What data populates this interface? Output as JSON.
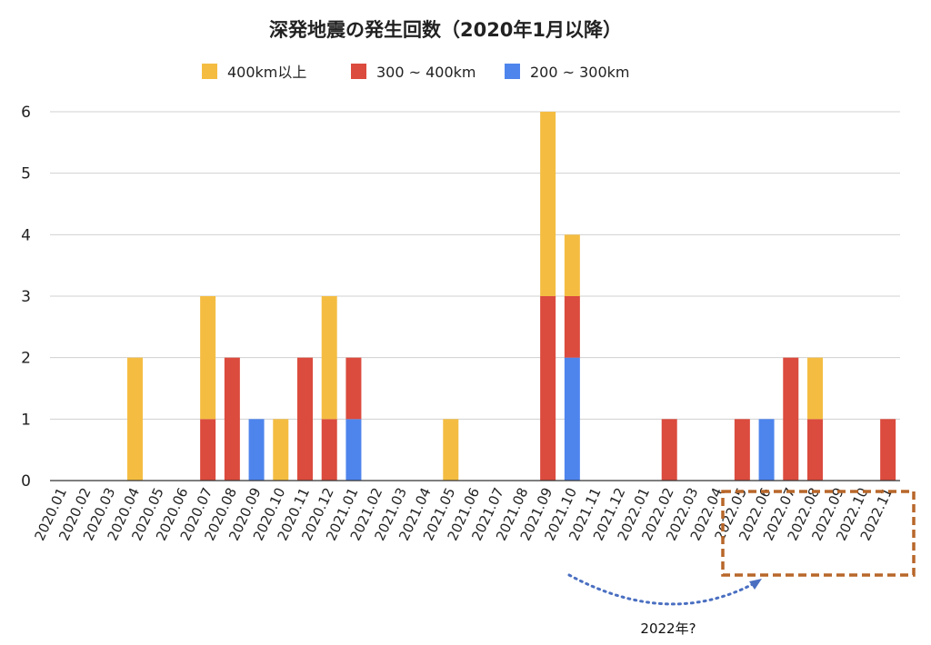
{
  "chart_data": {
    "type": "bar",
    "stacked": true,
    "title": "深発地震の発生回数（2020年1月以降）",
    "xlabel": "",
    "ylabel": "",
    "ylim": [
      0,
      6
    ],
    "yticks": [
      "0",
      "1",
      "2",
      "3",
      "4",
      "5",
      "6"
    ],
    "grid": true,
    "legend_position": "top",
    "categories": [
      "2020.01",
      "2020.02",
      "2020.03",
      "2020.04",
      "2020.05",
      "2020.06",
      "2020.07",
      "2020.08",
      "2020.09",
      "2020.10",
      "2020.11",
      "2020.12",
      "2021.01",
      "2021.02",
      "2021.03",
      "2021.04",
      "2021.05",
      "2021.06",
      "2021.07",
      "2021.08",
      "2021.09",
      "2021.10",
      "2021.11",
      "2021.12",
      "2022.01",
      "2022.02",
      "2022.03",
      "2022.04",
      "2022.05",
      "2022.06",
      "2022.07",
      "2022.08",
      "2022.09",
      "2022.10",
      "2022.11"
    ],
    "series": [
      {
        "name": "200 ~ 300km",
        "color": "#4e85ed",
        "values": [
          0,
          0,
          0,
          0,
          0,
          0,
          0,
          0,
          1,
          0,
          0,
          0,
          1,
          0,
          0,
          0,
          0,
          0,
          0,
          0,
          0,
          2,
          0,
          0,
          0,
          0,
          0,
          0,
          0,
          1,
          0,
          0,
          0,
          0,
          0
        ]
      },
      {
        "name": "300 ~ 400km",
        "color": "#db4b3e",
        "values": [
          0,
          0,
          0,
          0,
          0,
          0,
          1,
          2,
          0,
          0,
          2,
          1,
          1,
          0,
          0,
          0,
          0,
          0,
          0,
          0,
          3,
          1,
          0,
          0,
          0,
          1,
          0,
          0,
          1,
          0,
          2,
          1,
          0,
          0,
          1
        ]
      },
      {
        "name": "400km以上",
        "color": "#f4bd42",
        "values": [
          0,
          0,
          0,
          2,
          0,
          0,
          2,
          0,
          0,
          1,
          0,
          2,
          0,
          0,
          0,
          0,
          1,
          0,
          0,
          0,
          3,
          1,
          0,
          0,
          0,
          0,
          0,
          0,
          0,
          0,
          0,
          1,
          0,
          0,
          0
        ]
      }
    ],
    "legend_order": [
      "400km以上",
      "300 ~ 400km",
      "200 ~ 300km"
    ],
    "annotation": {
      "text": "2022年?",
      "highlight_categories": [
        "2022.05",
        "2022.06",
        "2022.07",
        "2022.08",
        "2022.09",
        "2022.10",
        "2022.11"
      ],
      "highlight_color": "#b8672a",
      "arrow_color": "#4a6fc1"
    }
  }
}
